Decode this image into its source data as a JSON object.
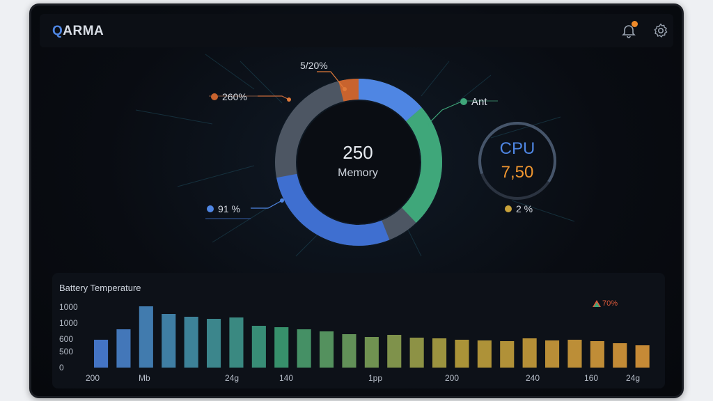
{
  "header": {
    "logo_accent": "Q",
    "logo_rest": "ARMA",
    "bell_icon": "bell-icon",
    "settings_icon": "gear-icon"
  },
  "memory": {
    "value": "250",
    "label": "Memory"
  },
  "callouts": {
    "top": "5/20%",
    "left": "260%",
    "right": "Ant",
    "bottom_left": "91 %"
  },
  "cpu": {
    "label": "CPU",
    "value": "7,50",
    "sub": "2 %"
  },
  "colors": {
    "blue": "#4f86e3",
    "green": "#3fa77a",
    "orange": "#ee9530",
    "gray": "#4d5663"
  },
  "chart_data": {
    "type": "bar",
    "title": "Battery Temperature",
    "legend": "70%",
    "y_ticks": [
      "1000",
      "1000",
      "600",
      "500",
      "0"
    ],
    "x_ticks": [
      "200",
      "Mb",
      "24g",
      "140",
      "1pp",
      "200",
      "240",
      "160",
      "24g"
    ],
    "series": [
      {
        "values": [
          0.4,
          0.55,
          0.88,
          0.77,
          0.73,
          0.7,
          0.72,
          0.6,
          0.58,
          0.55,
          0.52,
          0.48,
          0.44,
          0.47,
          0.43,
          0.42,
          0.4,
          0.39,
          0.38,
          0.42,
          0.39,
          0.4,
          0.38,
          0.35,
          0.32
        ]
      }
    ]
  }
}
